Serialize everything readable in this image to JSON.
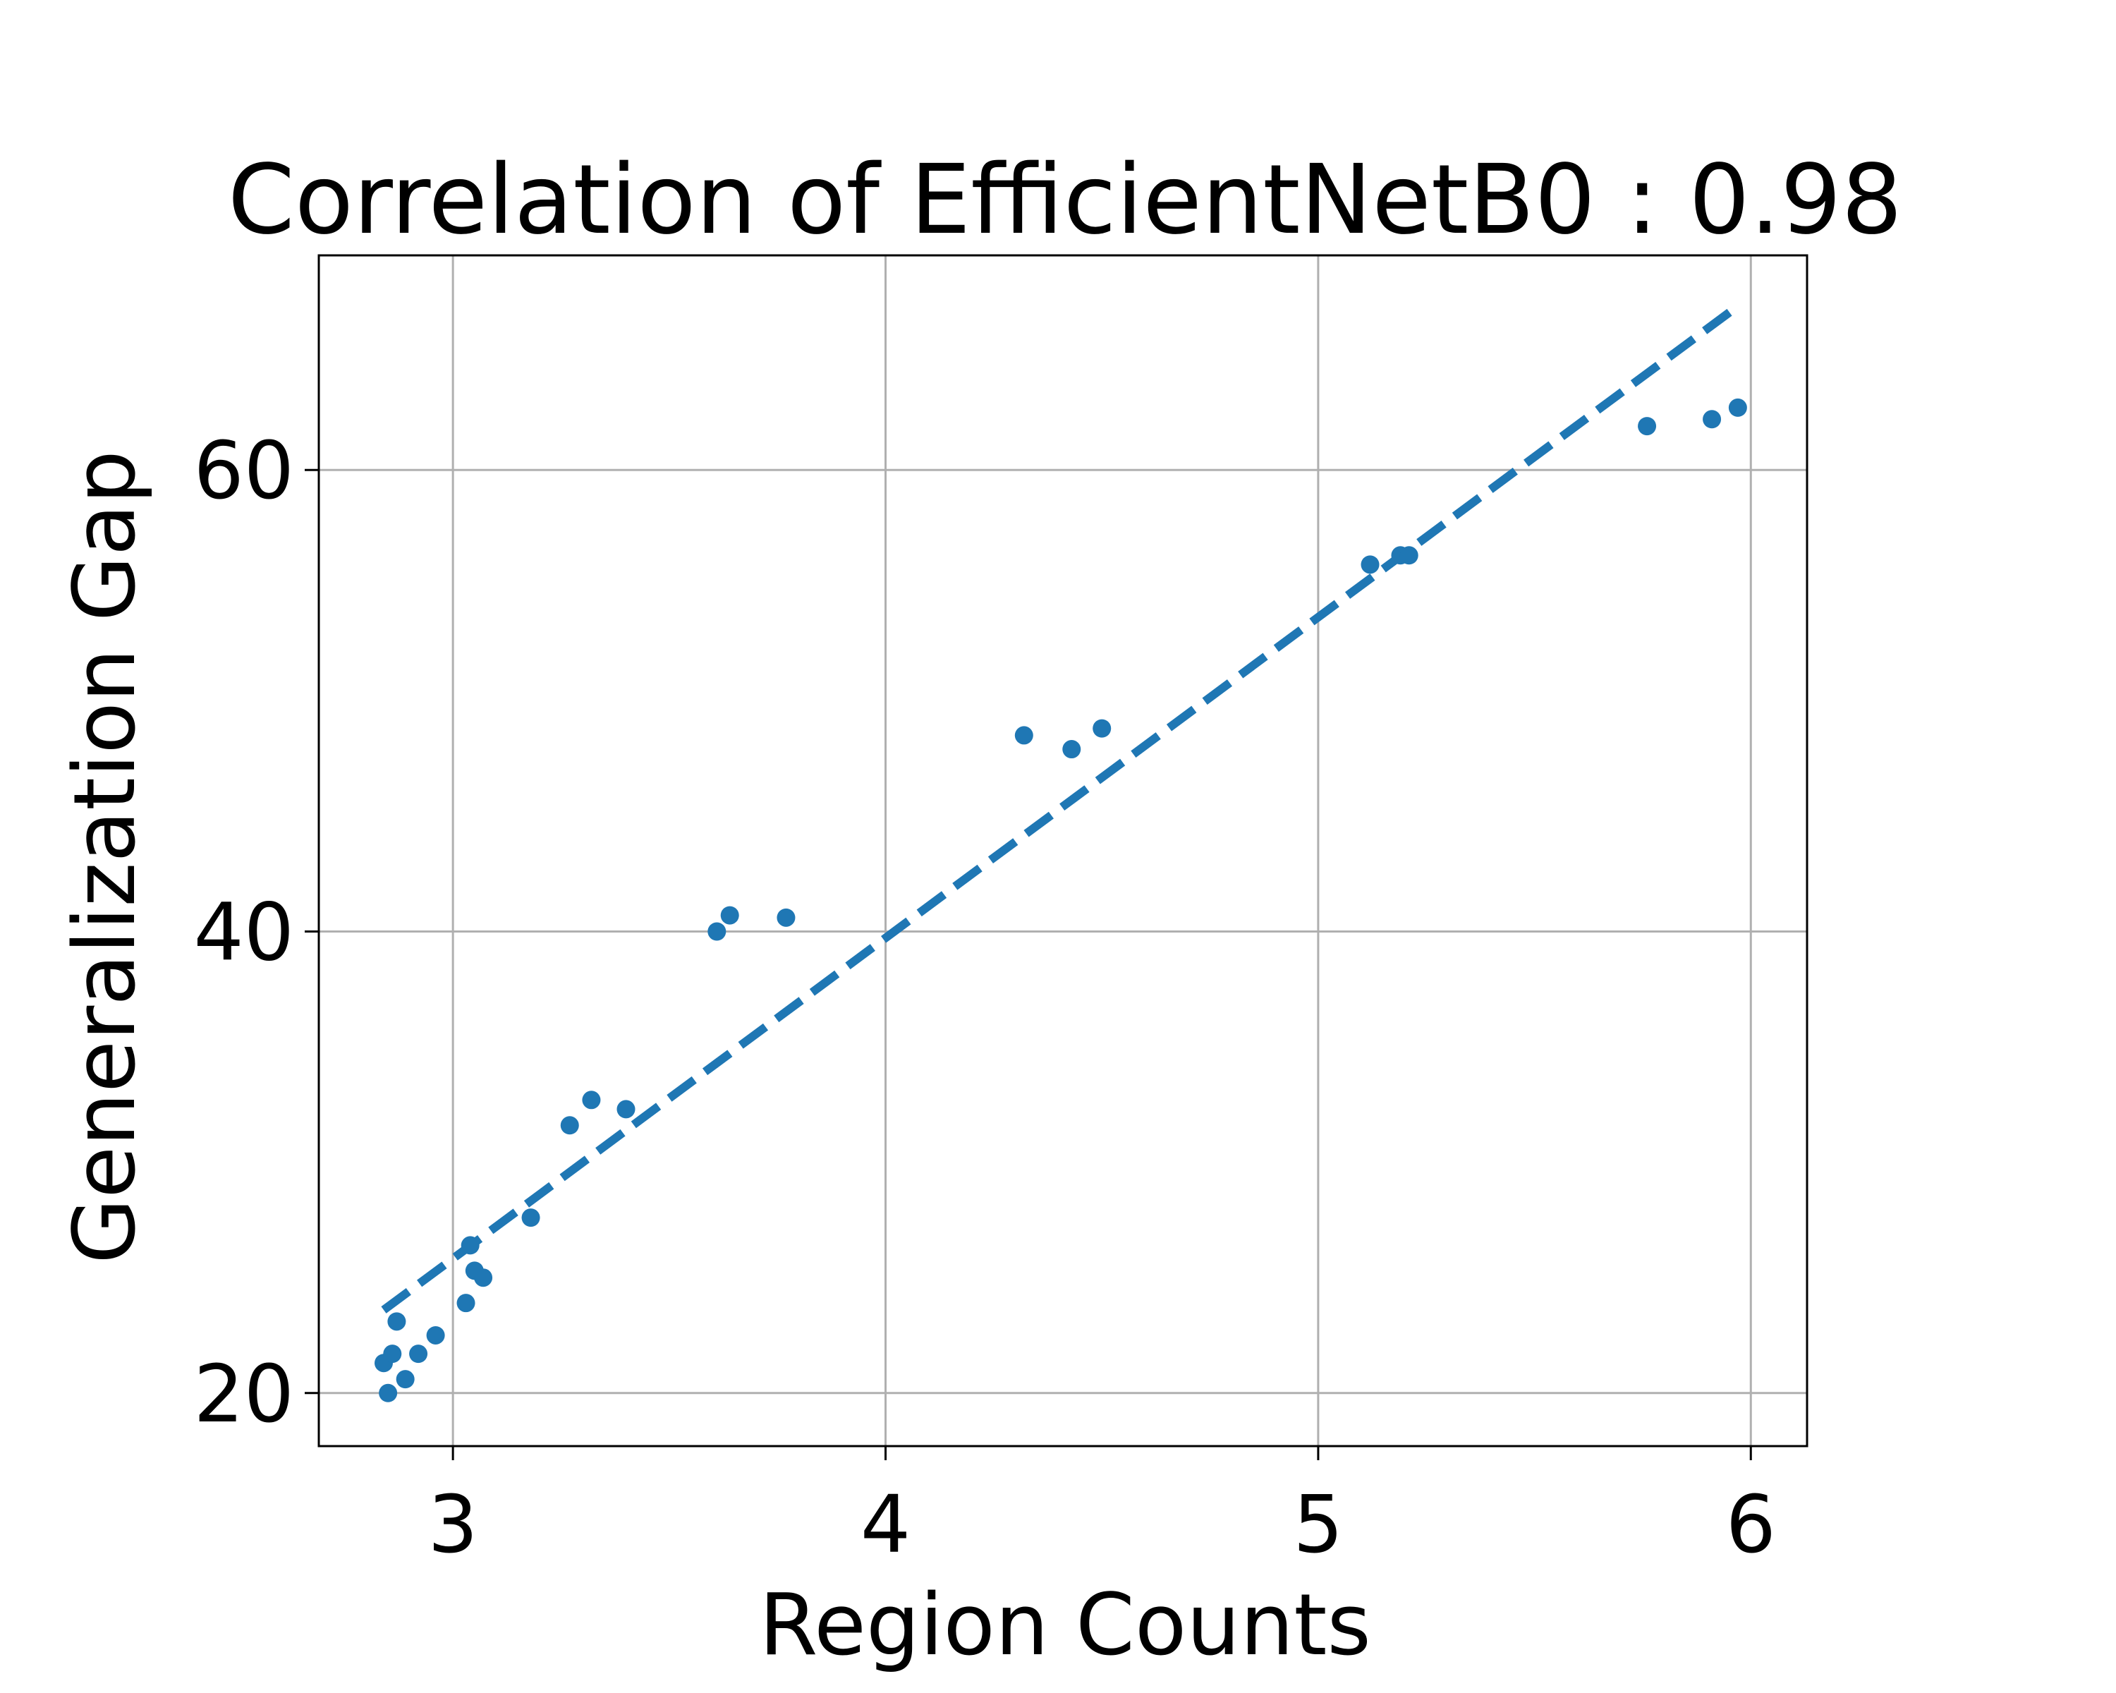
{
  "chart_data": {
    "type": "scatter",
    "title": "Correlation of EfficientNetB0 : 0.98",
    "xlabel": "Region Counts",
    "ylabel": "Generalization Gap",
    "xlim": [
      2.69,
      6.13
    ],
    "ylim": [
      17.7,
      69.3
    ],
    "xticks": [
      3,
      4,
      5,
      6
    ],
    "yticks": [
      20,
      40,
      60
    ],
    "grid": true,
    "legend": "none",
    "colors": {
      "points": "#1f77b4",
      "fit": "#1f77b4"
    },
    "points": {
      "x": [
        2.84,
        2.86,
        2.87,
        2.85,
        2.89,
        2.92,
        2.96,
        3.03,
        3.04,
        3.05,
        3.07,
        3.18,
        3.27,
        3.32,
        3.4,
        3.61,
        3.64,
        3.77,
        4.32,
        4.43,
        4.5,
        5.12,
        5.19,
        5.21,
        5.76,
        5.91,
        5.97
      ],
      "y": [
        21.3,
        21.7,
        23.1,
        20.0,
        20.6,
        21.7,
        22.5,
        23.9,
        26.4,
        25.3,
        25.0,
        27.6,
        31.6,
        32.7,
        32.3,
        40.0,
        40.7,
        40.6,
        48.5,
        47.9,
        48.8,
        55.9,
        56.3,
        56.3,
        61.9,
        62.2,
        62.7
      ]
    },
    "fit_line": {
      "x": [
        2.84,
        5.97
      ],
      "y": [
        23.6,
        67.1
      ]
    }
  }
}
